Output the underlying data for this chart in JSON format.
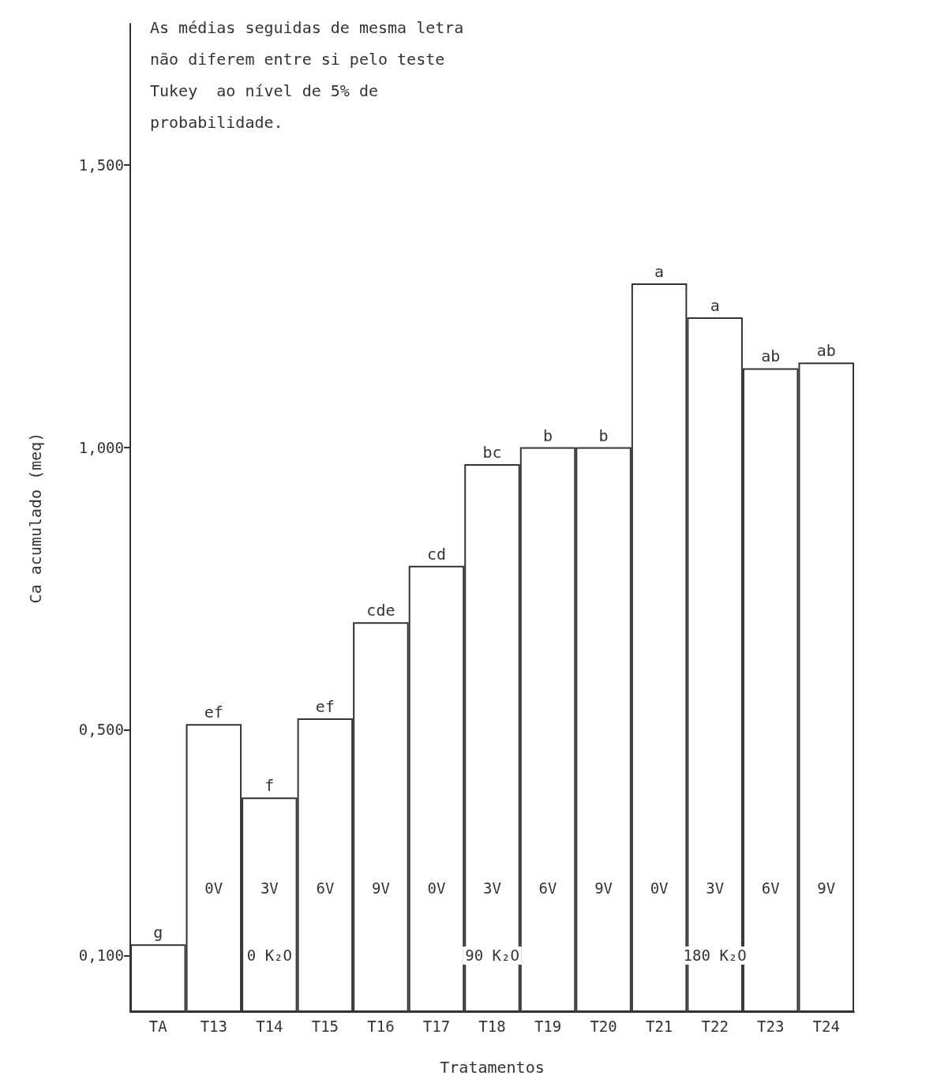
{
  "chart_data": {
    "type": "bar",
    "xlabel": "Tratamentos",
    "ylabel": "Ca acumulado (meq)",
    "categories": [
      "TA",
      "T13",
      "T14",
      "T15",
      "T16",
      "T17",
      "T18",
      "T19",
      "T20",
      "T21",
      "T22",
      "T23",
      "T24"
    ],
    "values": [
      0.12,
      0.51,
      0.38,
      0.52,
      0.69,
      0.79,
      0.97,
      1.0,
      1.0,
      1.29,
      1.23,
      1.14,
      1.15
    ],
    "value_labels": [
      "g",
      "ef",
      "f",
      "ef",
      "cde",
      "cd",
      "bc",
      "b",
      "b",
      "a",
      "a",
      "ab",
      "ab"
    ],
    "color": "#ffffff",
    "ylim": [
      0,
      1.75
    ],
    "yticks": [
      {
        "value": 0.1,
        "label": "0,100"
      },
      {
        "value": 0.5,
        "label": "0,500"
      },
      {
        "value": 1.0,
        "label": "1,000"
      },
      {
        "value": 1.5,
        "label": "1,500"
      }
    ],
    "grid": false,
    "annotations": [
      "As médias seguidas de mesma letra não diferem entre si pelo teste Tukey  ao nível de 5% de probabilidade.",
      {
        "text": "0V",
        "x": "T13",
        "y": 0.22
      },
      {
        "text": "3V",
        "x": "T14",
        "y": 0.22
      },
      {
        "text": "6V",
        "x": "T15",
        "y": 0.22
      },
      {
        "text": "9V",
        "x": "T16",
        "y": 0.22
      },
      {
        "text": "0V",
        "x": "T17",
        "y": 0.22
      },
      {
        "text": "3V",
        "x": "T18",
        "y": 0.22
      },
      {
        "text": "6V",
        "x": "T19",
        "y": 0.22
      },
      {
        "text": "9V",
        "x": "T20",
        "y": 0.22
      },
      {
        "text": "0V",
        "x": "T21",
        "y": 0.22
      },
      {
        "text": "3V",
        "x": "T22",
        "y": 0.22
      },
      {
        "text": "6V",
        "x": "T23",
        "y": 0.22
      },
      {
        "text": "9V",
        "x": "T24",
        "y": 0.22
      },
      "0 K₂O",
      "90 K₂O",
      "180 K₂O"
    ]
  }
}
